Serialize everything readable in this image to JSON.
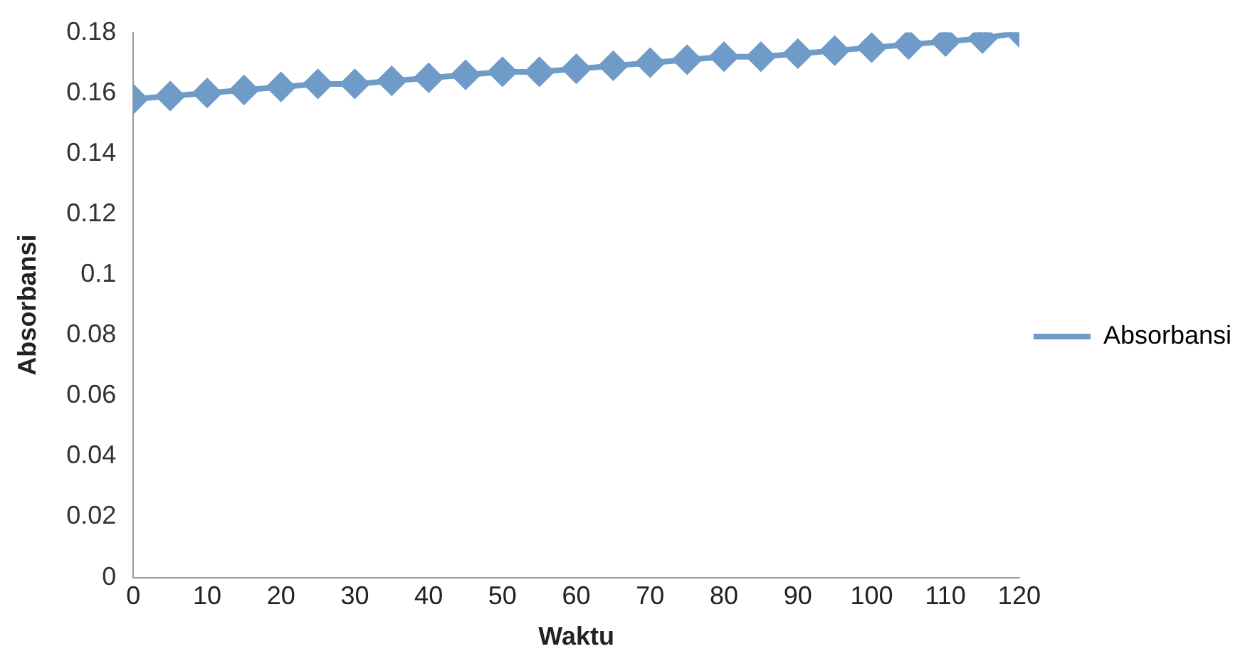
{
  "chart_data": {
    "type": "line",
    "xlabel": "Waktu",
    "ylabel": "Absorbansi",
    "x": [
      0,
      5,
      10,
      15,
      20,
      25,
      30,
      35,
      40,
      45,
      50,
      55,
      60,
      65,
      70,
      75,
      80,
      85,
      90,
      95,
      100,
      105,
      110,
      115,
      120
    ],
    "series": [
      {
        "name": "Absorbansi",
        "color": "#6f9bc8",
        "values": [
          0.158,
          0.159,
          0.16,
          0.161,
          0.162,
          0.163,
          0.163,
          0.164,
          0.165,
          0.166,
          0.167,
          0.167,
          0.168,
          0.169,
          0.17,
          0.171,
          0.172,
          0.172,
          0.173,
          0.174,
          0.175,
          0.176,
          0.177,
          0.178,
          0.18
        ]
      }
    ],
    "xlim": [
      0,
      120
    ],
    "xticks": [
      0,
      10,
      20,
      30,
      40,
      50,
      60,
      70,
      80,
      90,
      100,
      110,
      120
    ],
    "ylim": [
      0,
      0.18
    ],
    "yticks": [
      0,
      0.02,
      0.04,
      0.06,
      0.08,
      0.1,
      0.12,
      0.14,
      0.16,
      0.18
    ],
    "grid": false,
    "legend": "right",
    "marker": "diamond",
    "line_style": "solid"
  }
}
